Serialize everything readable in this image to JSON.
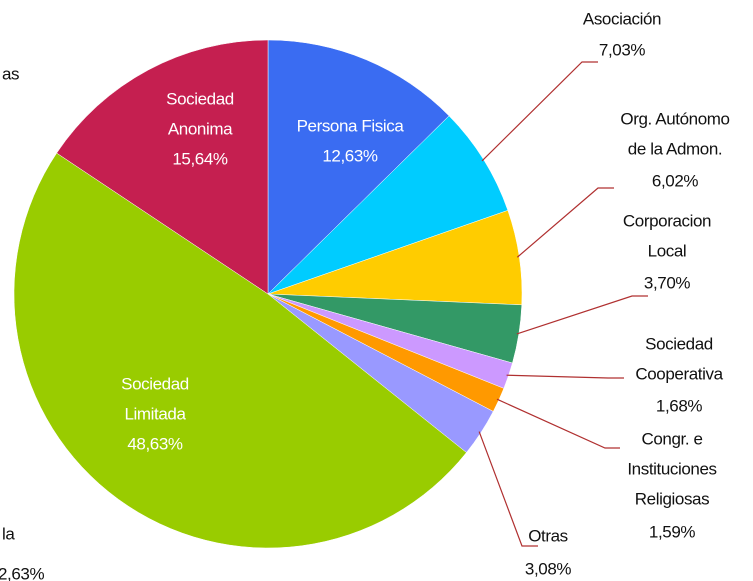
{
  "chart_data": {
    "type": "pie",
    "categories": [
      [
        "Persona Fisica"
      ],
      [
        "Asociación"
      ],
      [
        "Org. Autónomo",
        "de la Admon."
      ],
      [
        "Corporacion",
        "Local"
      ],
      [
        "Sociedad",
        "Cooperativa"
      ],
      [
        "Congr. e",
        "Instituciones",
        "Religiosas"
      ],
      [
        "Otras"
      ],
      [
        "Sociedad",
        "Limitada"
      ],
      [
        "Sociedad",
        "Anonima"
      ]
    ],
    "values": [
      12.63,
      7.03,
      6.02,
      3.7,
      1.68,
      1.59,
      3.08,
      48.63,
      15.64
    ],
    "value_labels": [
      "12,63%",
      "7,03%",
      "6,02%",
      "3,70%",
      "1,68%",
      "1,59%",
      "3,08%",
      "48,63%",
      "15,64%"
    ],
    "colors": [
      "#3a6cf2",
      "#00ccff",
      "#ffcc00",
      "#339966",
      "#cc99ff",
      "#ff9900",
      "#9999ff",
      "#99cc00",
      "#c51f50"
    ],
    "annotations": [
      "as",
      "la",
      "2,63%"
    ]
  }
}
